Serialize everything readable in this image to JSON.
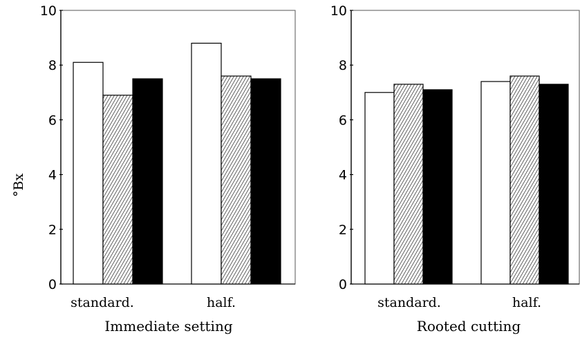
{
  "ylabel": "°Bx",
  "chart_data": [
    {
      "type": "bar",
      "xlabel": "Immediate setting",
      "ylabel": "°Bx",
      "ylim": [
        0,
        10
      ],
      "yticks": [
        0,
        2,
        4,
        6,
        8,
        10
      ],
      "categories": [
        "standard.",
        "half."
      ],
      "series": [
        {
          "fill": "white",
          "values": [
            8.1,
            8.8
          ]
        },
        {
          "fill": "hatched",
          "values": [
            6.9,
            7.6
          ]
        },
        {
          "fill": "black",
          "values": [
            7.5,
            7.5
          ]
        }
      ],
      "grid": false,
      "legend": "none"
    },
    {
      "type": "bar",
      "xlabel": "Rooted cutting",
      "ylim": [
        0,
        10
      ],
      "yticks": [
        0,
        2,
        4,
        6,
        8,
        10
      ],
      "categories": [
        "standard.",
        "half."
      ],
      "series": [
        {
          "fill": "white",
          "values": [
            7.0,
            7.4
          ]
        },
        {
          "fill": "hatched",
          "values": [
            7.3,
            7.6
          ]
        },
        {
          "fill": "black",
          "values": [
            7.1,
            7.3
          ]
        }
      ],
      "grid": false,
      "legend": "none"
    }
  ]
}
